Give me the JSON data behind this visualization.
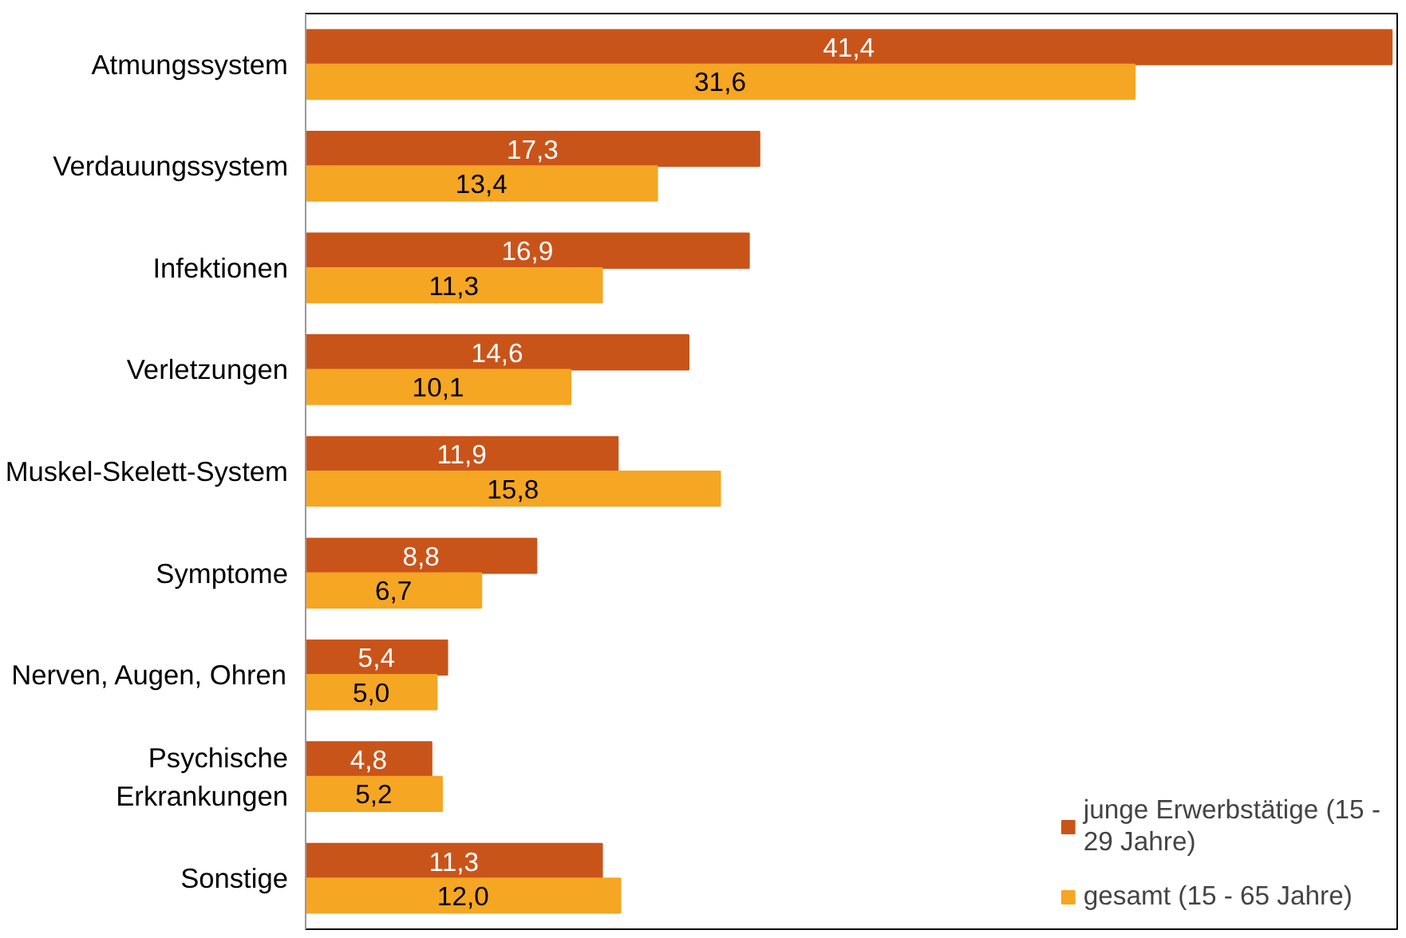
{
  "chart_data": {
    "type": "bar",
    "orientation": "horizontal",
    "categories": [
      "Atmungssystem",
      "Verdauungssystem",
      "Infektionen",
      "Verletzungen",
      "Muskel-Skelett-System",
      "Symptome",
      "Nerven, Augen, Ohren",
      "Psychische Erkrankungen",
      "Sonstige"
    ],
    "series": [
      {
        "name": "junge Erwerbstätige (15 - 29 Jahre)",
        "color": "#c9541a",
        "values": [
          41.4,
          17.3,
          16.9,
          14.6,
          11.9,
          8.8,
          5.4,
          4.8,
          11.3
        ],
        "value_labels": [
          "41,4",
          "17,3",
          "16,9",
          "14,6",
          "11,9",
          "8,8",
          "5,4",
          "4,8",
          "11,3"
        ]
      },
      {
        "name": "gesamt (15 - 65 Jahre)",
        "color": "#f5a623",
        "values": [
          31.6,
          13.4,
          11.3,
          10.1,
          15.8,
          6.7,
          5.0,
          5.2,
          12.0
        ],
        "value_labels": [
          "31,6",
          "13,4",
          "11,3",
          "10,1",
          "15,8",
          "6,7",
          "5,0",
          "5,2",
          "12,0"
        ]
      }
    ],
    "legend": "bottom right",
    "grid": false
  }
}
